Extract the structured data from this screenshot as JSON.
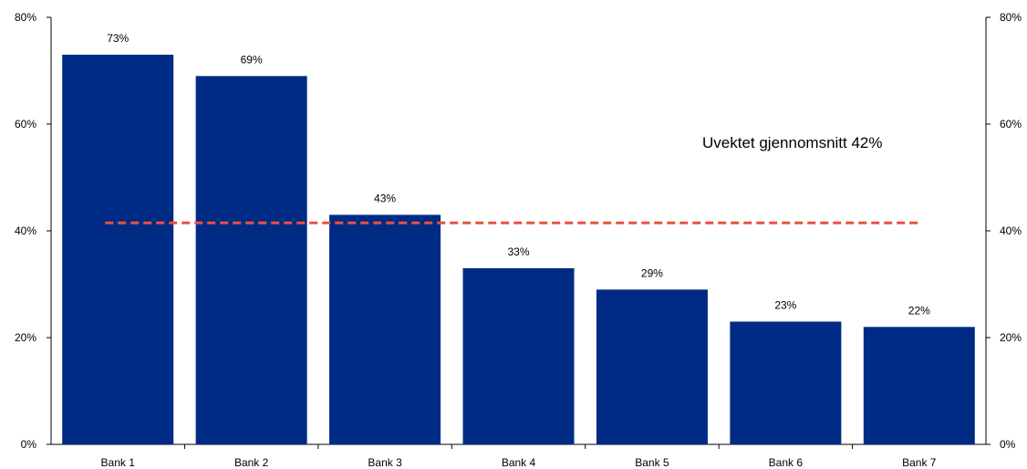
{
  "chart_data": {
    "type": "bar",
    "categories": [
      "Bank 1",
      "Bank 2",
      "Bank 3",
      "Bank 4",
      "Bank 5",
      "Bank 6",
      "Bank 7"
    ],
    "values": [
      73,
      69,
      43,
      33,
      29,
      23,
      22
    ],
    "value_labels": [
      "73%",
      "69%",
      "43%",
      "33%",
      "29%",
      "23%",
      "22%"
    ],
    "ylim": [
      0,
      80
    ],
    "y_ticks": [
      0,
      20,
      40,
      60,
      80
    ],
    "y_tick_labels": [
      "0%",
      "20%",
      "40%",
      "60%",
      "80%"
    ],
    "right_axis": true,
    "grid": false,
    "bar_color": "#002b85",
    "reference_line": {
      "value": 41.5,
      "style": "dashed",
      "color": "#e8523f",
      "label": "Uvektet gjennomsnitt 42%"
    }
  }
}
